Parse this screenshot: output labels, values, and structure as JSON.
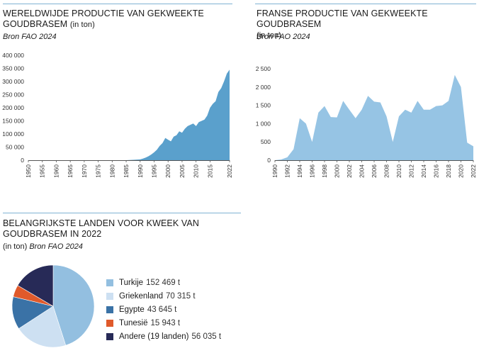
{
  "colors": {
    "world_fill": "#5aa0cc",
    "france_fill": "#96c4e4",
    "rule": "#7fb2d3",
    "axis": "#555555"
  },
  "world": {
    "title": "WERELDWIJDE PRODUCTIE VAN GEKWEEKTE GOUDBRASEM",
    "unit": "(in ton)",
    "source": "Bron FAO 2024"
  },
  "france": {
    "title": "FRANSE PRODUCTIE VAN GEKWEEKTE GOUDBRASEM",
    "unit": "(in ton)",
    "source": "Bron FAO 2024"
  },
  "pie": {
    "title": "BELANGRIJKSTE LANDEN VOOR KWEEK VAN GOUDBRASEM IN 2022",
    "unit": "(in ton)",
    "source": "Bron FAO 2024",
    "legend": [
      {
        "name": "Turkije",
        "value_text": "152 469 t"
      },
      {
        "name": "Griekenland",
        "value_text": "70 315 t"
      },
      {
        "name": "Egypte",
        "value_text": "43 645 t"
      },
      {
        "name": "Tunesië",
        "value_text": "15 943 t"
      },
      {
        "name": "Andere (19 landen)",
        "value_text": "56 035 t"
      }
    ]
  },
  "chart_data": [
    {
      "type": "area",
      "title": "WERELDWIJDE PRODUCTIE VAN GEKWEEKTE GOUDBRASEM",
      "ylabel": "(in ton)",
      "ylim": [
        0,
        400000
      ],
      "xlim": [
        1950,
        2022
      ],
      "yticks": [
        0,
        50000,
        100000,
        150000,
        200000,
        250000,
        300000,
        350000,
        400000
      ],
      "ytick_labels": [
        "0",
        "50 000",
        "100 000",
        "150 000",
        "200 000",
        "250 000",
        "300 000",
        "350 000",
        "400 000"
      ],
      "xticks": [
        1950,
        1955,
        1960,
        1965,
        1970,
        1975,
        1980,
        1985,
        1990,
        1995,
        2000,
        2005,
        2010,
        2015,
        2022
      ],
      "x": [
        1950,
        1985,
        1988,
        1990,
        1991,
        1992,
        1993,
        1994,
        1995,
        1996,
        1997,
        1998,
        1999,
        2000,
        2001,
        2002,
        2003,
        2004,
        2005,
        2006,
        2007,
        2008,
        2009,
        2010,
        2011,
        2012,
        2013,
        2014,
        2015,
        2016,
        2017,
        2018,
        2019,
        2020,
        2021,
        2022
      ],
      "y": [
        0,
        0,
        1500,
        3000,
        6000,
        10000,
        15000,
        22000,
        30000,
        40000,
        55000,
        65000,
        85000,
        78000,
        72000,
        90000,
        95000,
        110000,
        105000,
        120000,
        130000,
        135000,
        140000,
        130000,
        145000,
        150000,
        155000,
        170000,
        200000,
        215000,
        225000,
        260000,
        275000,
        300000,
        330000,
        345000
      ],
      "grid": false
    },
    {
      "type": "area",
      "title": "FRANSE PRODUCTIE VAN GEKWEEKTE GOUDBRASEM",
      "ylabel": "(in ton)",
      "ylim": [
        0,
        2500
      ],
      "xlim": [
        1990,
        2022
      ],
      "yticks": [
        0,
        500,
        1000,
        1500,
        2000,
        2500
      ],
      "ytick_labels": [
        "0",
        "500",
        "1 000",
        "1 500",
        "2 000",
        "2 500"
      ],
      "xticks": [
        1990,
        1992,
        1994,
        1996,
        1998,
        2000,
        2002,
        2004,
        2006,
        2008,
        2010,
        2012,
        2014,
        2016,
        2018,
        2020,
        2022
      ],
      "x": [
        1990,
        1991,
        1992,
        1993,
        1994,
        1995,
        1996,
        1997,
        1998,
        1999,
        2000,
        2001,
        2002,
        2003,
        2004,
        2005,
        2006,
        2007,
        2008,
        2009,
        2010,
        2011,
        2012,
        2013,
        2014,
        2015,
        2016,
        2017,
        2018,
        2019,
        2020,
        2021,
        2022
      ],
      "y": [
        0,
        20,
        80,
        300,
        1150,
        1000,
        500,
        1300,
        1480,
        1180,
        1170,
        1620,
        1380,
        1150,
        1380,
        1760,
        1600,
        1580,
        1200,
        500,
        1200,
        1380,
        1300,
        1620,
        1380,
        1380,
        1480,
        1500,
        1620,
        2330,
        2000,
        480,
        380
      ],
      "grid": false
    },
    {
      "type": "pie",
      "title": "BELANGRIJKSTE LANDEN VOOR KWEEK VAN GOUDBRASEM IN 2022",
      "labels": [
        "Turkije",
        "Griekenland",
        "Egypte",
        "Tunesië",
        "Andere (19 landen)"
      ],
      "values": [
        152469,
        70315,
        43645,
        15943,
        56035
      ],
      "colors": [
        "#93bfe0",
        "#cde0f2",
        "#3a72a6",
        "#e05a2b",
        "#272a57"
      ],
      "legend": "right"
    }
  ]
}
